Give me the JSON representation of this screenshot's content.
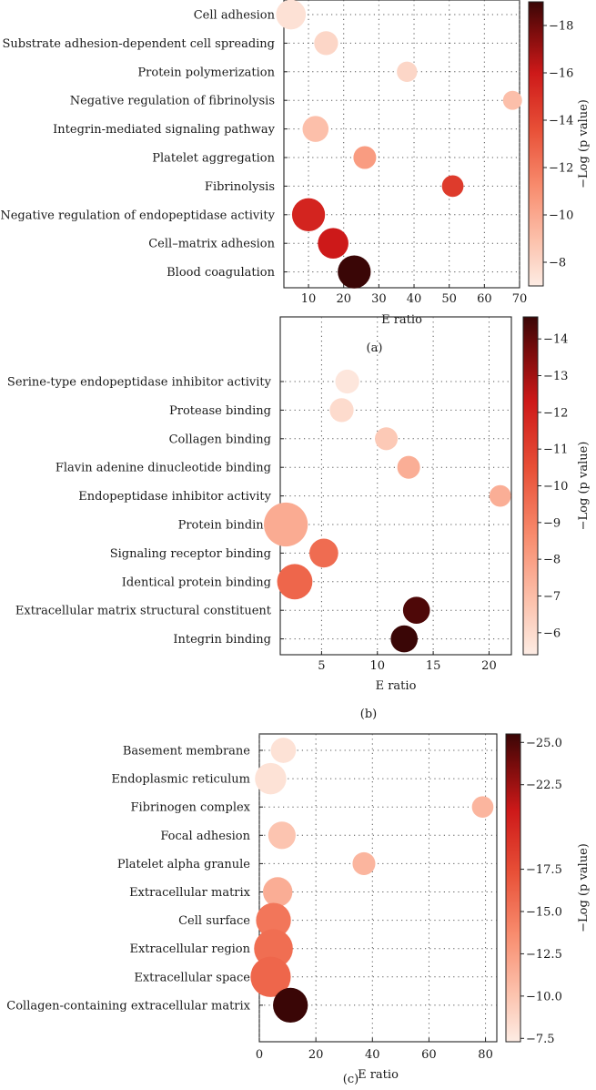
{
  "chart_data": [
    {
      "type": "scatter",
      "panel_label": "(a)",
      "xlabel": "E ratio",
      "xlim": [
        3,
        70
      ],
      "xticks": [
        10,
        20,
        30,
        40,
        50,
        60,
        70
      ],
      "colorbar_label": "−Log (p value)",
      "colorbar_range": [
        7,
        19
      ],
      "colorbar_ticks": [
        8,
        10,
        12,
        14,
        16,
        18
      ],
      "colorbar_tick_labels": [
        "−8",
        "−10",
        "−12",
        "−14",
        "−16",
        "−18"
      ],
      "categories": [
        "Cell adhesion",
        "Substrate adhesion-dependent cell spreading",
        "Protein polymerization",
        "Negative regulation of fibrinolysis",
        "Integrin-mediated signaling pathway",
        "Platelet aggregation",
        "Fibrinolysis",
        "Negative regulation of endopeptidase activity",
        "Cell–matrix adhesion",
        "Blood coagulation"
      ],
      "points": [
        {
          "category": "Cell adhesion",
          "x": 5,
          "logp": 7.5,
          "count": 17
        },
        {
          "category": "Substrate adhesion-dependent cell spreading",
          "x": 15,
          "logp": 8,
          "count": 11
        },
        {
          "category": "Protein polymerization",
          "x": 38,
          "logp": 8,
          "count": 8
        },
        {
          "category": "Negative regulation of fibrinolysis",
          "x": 68,
          "logp": 9,
          "count": 7
        },
        {
          "category": "Integrin-mediated signaling pathway",
          "x": 12,
          "logp": 9,
          "count": 13
        },
        {
          "category": "Platelet aggregation",
          "x": 26,
          "logp": 10.5,
          "count": 10
        },
        {
          "category": "Fibrinolysis",
          "x": 51,
          "logp": 14.5,
          "count": 9
        },
        {
          "category": "Negative regulation of endopeptidase activity",
          "x": 10,
          "logp": 15.5,
          "count": 21
        },
        {
          "category": "Cell–matrix adhesion",
          "x": 17,
          "logp": 16,
          "count": 18
        },
        {
          "category": "Blood coagulation",
          "x": 23,
          "logp": 19,
          "count": 21
        }
      ]
    },
    {
      "type": "scatter",
      "panel_label": "(b)",
      "xlabel": "E ratio",
      "xlim": [
        1.3,
        22
      ],
      "xticks": [
        5,
        10,
        15,
        20
      ],
      "colorbar_label": "−Log (p value)",
      "colorbar_range": [
        5.4,
        14.6
      ],
      "colorbar_ticks": [
        6,
        7,
        8,
        9,
        10,
        11,
        12,
        13,
        14
      ],
      "colorbar_tick_labels": [
        "−6",
        "−7",
        "−8",
        "−9",
        "−10",
        "−11",
        "−12",
        "−13",
        "−14"
      ],
      "categories": [
        "Serine-type endopeptidase inhibitor activity",
        "Protease binding",
        "Collagen binding",
        "Flavin adenine dinucleotide binding",
        "Endopeptidase inhibitor activity",
        "Protein binding",
        "Signaling receptor binding",
        "Identical protein binding",
        "Extracellular matrix structural constituent",
        "Integrin binding"
      ],
      "points": [
        {
          "category": "Serine-type endopeptidase inhibitor activity",
          "x": 7.3,
          "logp": 5.6,
          "count": 11
        },
        {
          "category": "Protease binding",
          "x": 6.8,
          "logp": 6,
          "count": 11
        },
        {
          "category": "Collagen binding",
          "x": 10.8,
          "logp": 6.6,
          "count": 10
        },
        {
          "category": "Flavin adenine dinucleotide binding",
          "x": 12.8,
          "logp": 7.5,
          "count": 10
        },
        {
          "category": "Endopeptidase inhibitor activity",
          "x": 21,
          "logp": 7.5,
          "count": 9
        },
        {
          "category": "Protein binding",
          "x": 1.8,
          "logp": 7.6,
          "count": 37
        },
        {
          "category": "Signaling receptor binding",
          "x": 5.2,
          "logp": 9.6,
          "count": 16
        },
        {
          "category": "Identical protein binding",
          "x": 2.6,
          "logp": 9.8,
          "count": 24
        },
        {
          "category": "Extracellular matrix structural constituent",
          "x": 13.5,
          "logp": 14.3,
          "count": 14
        },
        {
          "category": "Integrin binding",
          "x": 12.4,
          "logp": 14.6,
          "count": 14
        }
      ]
    },
    {
      "type": "scatter",
      "panel_label": "(c)",
      "xlabel": "E ratio",
      "xlim": [
        0,
        84
      ],
      "xticks": [
        0,
        20,
        40,
        60,
        80
      ],
      "colorbar_label": "−Log (p value)",
      "colorbar_range": [
        7.3,
        25.5
      ],
      "colorbar_ticks": [
        7.5,
        10,
        12.5,
        15,
        17.5,
        22.5,
        25
      ],
      "colorbar_tick_labels": [
        "−7.5",
        "−10.0",
        "−12.5",
        "−15.0",
        "−17.5",
        "−22.5",
        "−25.0"
      ],
      "categories": [
        "Basement membrane",
        "Endoplasmic reticulum",
        "Fibrinogen complex",
        "Focal adhesion",
        "Platelet alpha granule",
        "Extracellular matrix",
        "Cell surface",
        "Extracellular region",
        "Extracellular space",
        "Collagen-containing extracellular matrix"
      ],
      "points": [
        {
          "category": "Basement membrane",
          "x": 8.5,
          "logp": 8,
          "count": 11
        },
        {
          "category": "Endoplasmic reticulum",
          "x": 4,
          "logp": 8,
          "count": 17
        },
        {
          "category": "Fibrinogen complex",
          "x": 79,
          "logp": 11,
          "count": 8
        },
        {
          "category": "Focal adhesion",
          "x": 8,
          "logp": 10,
          "count": 13
        },
        {
          "category": "Platelet alpha granule",
          "x": 37,
          "logp": 11,
          "count": 9
        },
        {
          "category": "Extracellular matrix",
          "x": 6.5,
          "logp": 11.5,
          "count": 15
        },
        {
          "category": "Cell surface",
          "x": 5,
          "logp": 15,
          "count": 21
        },
        {
          "category": "Extracellular region",
          "x": 5,
          "logp": 15.5,
          "count": 26
        },
        {
          "category": "Extracellular space",
          "x": 4,
          "logp": 16,
          "count": 28
        },
        {
          "category": "Collagen-containing extracellular matrix",
          "x": 11,
          "logp": 25.5,
          "count": 21
        }
      ]
    }
  ]
}
